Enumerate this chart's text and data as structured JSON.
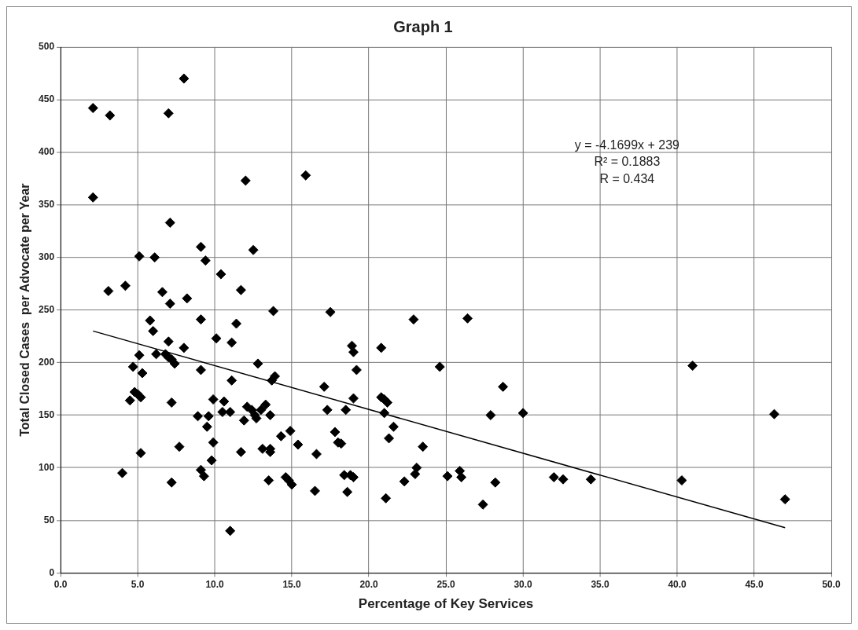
{
  "chart_data": {
    "type": "scatter",
    "title": "Graph 1",
    "xlabel": "Percentage of Key Services",
    "ylabel": "Total Closed Cases  per Advocate per Year",
    "xlim": [
      0,
      50
    ],
    "xticks": [
      {
        "value": 0,
        "label": "0.0"
      },
      {
        "value": 5,
        "label": "5.0"
      },
      {
        "value": 10,
        "label": "10.0"
      },
      {
        "value": 15,
        "label": "15.0"
      },
      {
        "value": 20,
        "label": "20.0"
      },
      {
        "value": 25,
        "label": "25.0"
      },
      {
        "value": 30,
        "label": "30.0"
      },
      {
        "value": 35,
        "label": "35.0"
      },
      {
        "value": 40,
        "label": "40.0"
      },
      {
        "value": 45,
        "label": "45.0"
      },
      {
        "value": 50,
        "label": "50.0"
      }
    ],
    "ylim": [
      0,
      500
    ],
    "yticks": [
      0,
      50,
      100,
      150,
      200,
      250,
      300,
      350,
      400,
      450,
      500
    ],
    "grid": true,
    "legend": false,
    "annotations": [
      "y = -4.1699x + 239",
      "R² = 0.1883",
      "R = 0.434"
    ],
    "series": [
      {
        "type": "scatter",
        "color": "#000000",
        "marker": "diamond",
        "x": [
          2.1,
          2.1,
          3.2,
          3.1,
          4.2,
          4.0,
          4.5,
          4.7,
          4.8,
          5.0,
          5.1,
          5.1,
          5.2,
          5.2,
          5.3,
          5.8,
          6.0,
          6.1,
          6.2,
          6.6,
          6.8,
          7.0,
          7.0,
          7.0,
          7.1,
          7.1,
          7.2,
          7.2,
          7.2,
          7.4,
          7.7,
          8.0,
          8.0,
          8.2,
          8.9,
          9.1,
          9.1,
          9.1,
          9.1,
          9.3,
          9.4,
          9.5,
          9.6,
          9.8,
          9.9,
          9.9,
          10.1,
          10.4,
          10.5,
          10.6,
          11.0,
          11.0,
          11.1,
          11.1,
          11.4,
          11.7,
          11.7,
          11.9,
          12.0,
          12.1,
          12.4,
          12.5,
          12.6,
          12.7,
          12.8,
          13.0,
          13.1,
          13.3,
          13.5,
          13.6,
          13.6,
          13.6,
          13.7,
          13.9,
          13.8,
          14.3,
          14.6,
          14.8,
          14.9,
          15.0,
          15.4,
          15.9,
          16.5,
          16.6,
          17.1,
          17.3,
          17.5,
          17.8,
          18.0,
          18.2,
          18.4,
          18.5,
          18.6,
          18.8,
          18.9,
          19.0,
          19.0,
          19.2,
          19.0,
          20.8,
          20.8,
          21.0,
          21.1,
          21.0,
          21.2,
          21.3,
          21.6,
          22.3,
          22.9,
          23.1,
          23.0,
          23.5,
          24.6,
          25.1,
          25.9,
          26.0,
          26.4,
          27.4,
          27.9,
          28.2,
          28.7,
          30.0,
          32.0,
          32.6,
          34.4,
          40.3,
          41.0,
          46.3,
          47.0
        ],
        "values": [
          442,
          357,
          435,
          268,
          273,
          95,
          164,
          196,
          172,
          170,
          207,
          301,
          167,
          114,
          190,
          240,
          230,
          300,
          208,
          267,
          208,
          437,
          220,
          205,
          333,
          256,
          203,
          162,
          86,
          199,
          120,
          470,
          214,
          261,
          149,
          310,
          241,
          193,
          98,
          92,
          297,
          139,
          149,
          107,
          124,
          165,
          223,
          284,
          153,
          163,
          153,
          40,
          219,
          183,
          237,
          115,
          269,
          145,
          373,
          158,
          155,
          307,
          150,
          147,
          199,
          155,
          118,
          160,
          88,
          115,
          118,
          150,
          183,
          187,
          249,
          130,
          91,
          88,
          135,
          84,
          122,
          378,
          78,
          113,
          177,
          155,
          248,
          134,
          124,
          123,
          93,
          155,
          77,
          93,
          216,
          210,
          166,
          193,
          91,
          214,
          167,
          152,
          71,
          165,
          162,
          128,
          139,
          87,
          241,
          100,
          94,
          120,
          196,
          92,
          97,
          91,
          242,
          65,
          150,
          86,
          177,
          152,
          91,
          89,
          89,
          88,
          197,
          151,
          70
        ]
      },
      {
        "type": "line",
        "color": "#000000",
        "marker": "none",
        "x": [
          2.1,
          47.0
        ],
        "values": [
          230,
          43
        ]
      }
    ]
  }
}
